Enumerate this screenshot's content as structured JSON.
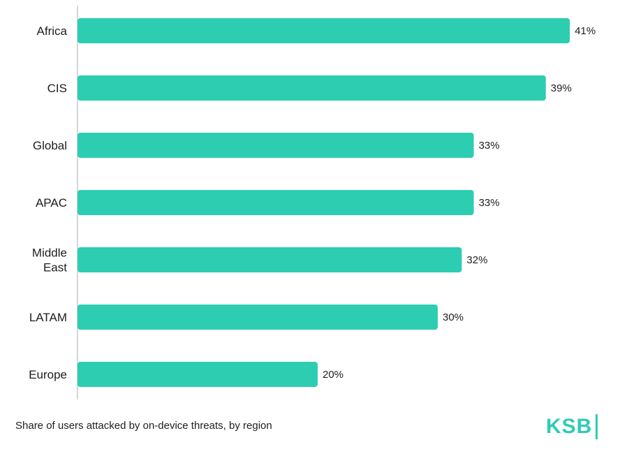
{
  "chart_data": {
    "type": "bar",
    "orientation": "horizontal",
    "categories": [
      "Africa",
      "CIS",
      "Global",
      "APAC",
      "Middle East",
      "LATAM",
      "Europe"
    ],
    "category_lines": [
      [
        "Africa"
      ],
      [
        "CIS"
      ],
      [
        "Global"
      ],
      [
        "APAC"
      ],
      [
        "Middle",
        "East"
      ],
      [
        "LATAM"
      ],
      [
        "Europe"
      ]
    ],
    "values": [
      41,
      39,
      33,
      33,
      32,
      30,
      20
    ],
    "value_labels": [
      "41%",
      "39%",
      "33%",
      "33%",
      "32%",
      "30%",
      "20%"
    ],
    "unit": "%",
    "grid": false,
    "colors": {
      "bar": "#2dcdb2",
      "axis": "#c8c8c8",
      "text": "#1d1d1b"
    }
  },
  "caption": "Share of users attacked by on-device threats, by region",
  "logo": {
    "text": "KSB",
    "color": "#2dcdb2"
  }
}
